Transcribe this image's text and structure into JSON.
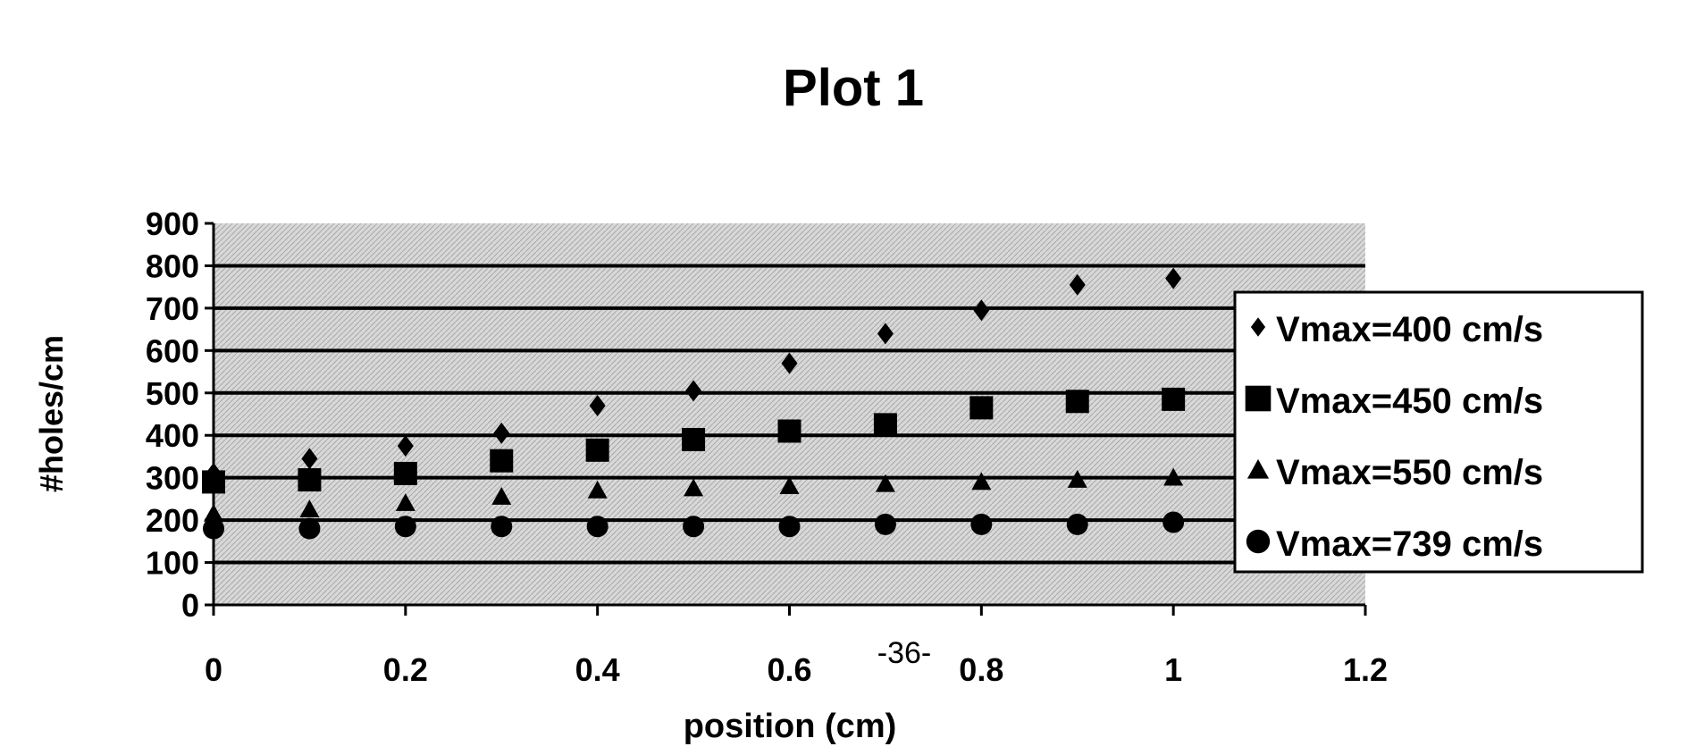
{
  "chart_data": {
    "type": "scatter",
    "title": "Plot 1",
    "xlabel": "position (cm)",
    "ylabel": "#holes/cm",
    "xlim": [
      0,
      1.2
    ],
    "ylim": [
      0,
      900
    ],
    "xticks": [
      "0",
      "0.2",
      "0.4",
      "0.6",
      "0.8",
      "1",
      "1.2"
    ],
    "yticks": [
      "0",
      "100",
      "200",
      "300",
      "400",
      "500",
      "600",
      "700",
      "800",
      "900"
    ],
    "grid": "horizontal",
    "legend_position": "right",
    "x": [
      0,
      0.1,
      0.2,
      0.3,
      0.4,
      0.5,
      0.6,
      0.7,
      0.8,
      0.9,
      1.0
    ],
    "series": [
      {
        "name": "Vmax=400 cm/s",
        "marker": "diamond",
        "values": [
          310,
          345,
          375,
          405,
          470,
          505,
          570,
          640,
          695,
          755,
          770
        ]
      },
      {
        "name": "Vmax=450 cm/s",
        "marker": "square",
        "values": [
          290,
          295,
          310,
          340,
          365,
          390,
          410,
          425,
          465,
          480,
          485
        ]
      },
      {
        "name": "Vmax=550 cm/s",
        "marker": "triangle",
        "values": [
          215,
          225,
          240,
          255,
          270,
          275,
          280,
          285,
          290,
          295,
          300
        ]
      },
      {
        "name": "Vmax=739 cm/s",
        "marker": "circle",
        "values": [
          180,
          180,
          185,
          185,
          185,
          185,
          185,
          190,
          190,
          190,
          195
        ]
      }
    ]
  },
  "page_number": "-36-"
}
